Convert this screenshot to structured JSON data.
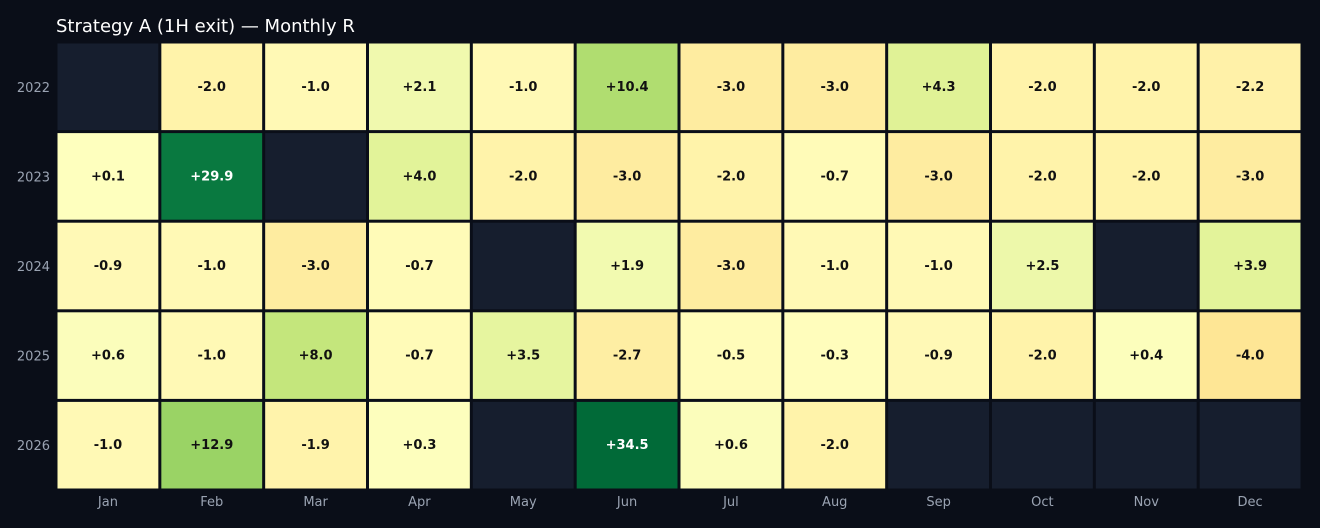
{
  "chart_data": {
    "type": "heatmap",
    "title": "Strategy A (1H exit) — Monthly R",
    "x": [
      "Jan",
      "Feb",
      "Mar",
      "Apr",
      "May",
      "Jun",
      "Jul",
      "Aug",
      "Sep",
      "Oct",
      "Nov",
      "Dec"
    ],
    "y": [
      "2022",
      "2023",
      "2024",
      "2025",
      "2026"
    ],
    "values": [
      [
        null,
        -2.0,
        -1.0,
        2.1,
        -1.0,
        10.4,
        -3.0,
        -3.0,
        4.3,
        -2.0,
        -2.0,
        -2.2
      ],
      [
        0.1,
        29.9,
        null,
        4.0,
        -2.0,
        -3.0,
        -2.0,
        -0.7,
        -3.0,
        -2.0,
        -2.0,
        -3.0
      ],
      [
        -0.9,
        -1.0,
        -3.0,
        -0.7,
        null,
        1.9,
        -3.0,
        -1.0,
        -1.0,
        2.5,
        null,
        3.9
      ],
      [
        0.6,
        -1.0,
        8.0,
        -0.7,
        3.5,
        -2.7,
        -0.5,
        -0.3,
        -0.9,
        -2.0,
        0.4,
        -4.0
      ],
      [
        -1.0,
        12.9,
        -1.9,
        0.3,
        null,
        34.5,
        0.6,
        -2.0,
        null,
        null,
        null,
        null
      ]
    ],
    "labels": [
      [
        "",
        "-2.0",
        "-1.0",
        "+2.1",
        "-1.0",
        "+10.4",
        "-3.0",
        "-3.0",
        "+4.3",
        "-2.0",
        "-2.0",
        "-2.2"
      ],
      [
        "+0.1",
        "+29.9",
        "",
        "+4.0",
        "-2.0",
        "-3.0",
        "-2.0",
        "-0.7",
        "-3.0",
        "-2.0",
        "-2.0",
        "-3.0"
      ],
      [
        "-0.9",
        "-1.0",
        "-3.0",
        "-0.7",
        "",
        "+1.9",
        "-3.0",
        "-1.0",
        "-1.0",
        "+2.5",
        "",
        "+3.9"
      ],
      [
        "+0.6",
        "-1.0",
        "+8.0",
        "-0.7",
        "+3.5",
        "-2.7",
        "-0.5",
        "-0.3",
        "-0.9",
        "-2.0",
        "+0.4",
        "-4.0"
      ],
      [
        "-1.0",
        "+12.9",
        "-1.9",
        "+0.3",
        "",
        "+34.5",
        "+0.6",
        "-2.0",
        "",
        "",
        "",
        ""
      ]
    ],
    "colorscale": "RdYlGn",
    "empty_cell_color": "#161e2e",
    "background": "#0a0e18"
  }
}
